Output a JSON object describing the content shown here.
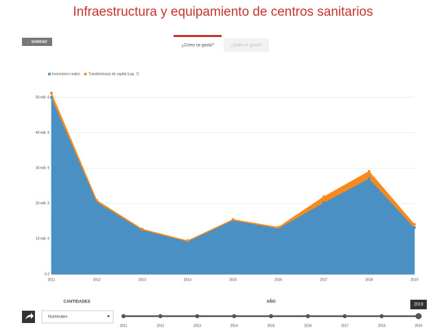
{
  "header": {
    "title": "Infraestructura y equipamiento de centros sanitarios",
    "back_button": "← SANIDAD",
    "tabs": [
      "¿Cómo se gasta?",
      "¿Quién lo gasta?"
    ]
  },
  "chart_data": {
    "type": "stacked-area",
    "categories": [
      "2011",
      "2012",
      "2013",
      "2014",
      "2015",
      "2016",
      "2017",
      "2018",
      "2019"
    ],
    "series": [
      {
        "name": "Inversiones reales",
        "color": "#4a90c2",
        "values": [
          50,
          20.5,
          12.6,
          9.3,
          15.3,
          13,
          20.3,
          27.1,
          13.2
        ]
      },
      {
        "name": "Transferencias de capital (cap. 7)",
        "color": "#f58a1f",
        "values": [
          1.2,
          0.4,
          0.2,
          0.2,
          0.2,
          0.3,
          1.6,
          2,
          0.9
        ]
      }
    ],
    "ylim": [
      0,
      50
    ],
    "yticks": [
      {
        "value": 0,
        "label": "0 €"
      },
      {
        "value": 10,
        "label": "10 mill. €"
      },
      {
        "value": 20,
        "label": "20 mill. €"
      },
      {
        "value": 30,
        "label": "30 mill. €"
      },
      {
        "value": 40,
        "label": "40 mill. €"
      },
      {
        "value": 50,
        "label": "50 mill. €"
      }
    ],
    "grid": true,
    "legend": "top-left"
  },
  "controls": {
    "quantities_label": "CANTIDADES",
    "quantities_option": "Nominales",
    "year_label": "AÑO",
    "slider_years": [
      "2011",
      "2012",
      "2013",
      "2014",
      "2015",
      "2016",
      "2017",
      "2018",
      "2019"
    ],
    "selected_year": "2019"
  }
}
